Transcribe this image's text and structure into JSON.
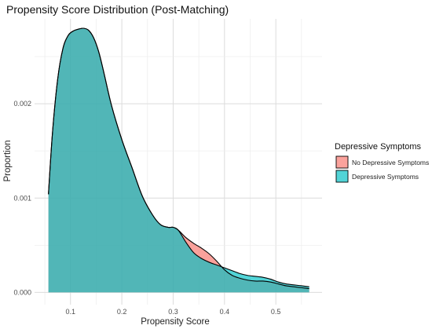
{
  "chart_data": {
    "type": "area",
    "title": "Propensity Score Distribution (Post-Matching)",
    "xlabel": "Propensity Score",
    "ylabel": "Proportion",
    "xlim": [
      0.03,
      0.59
    ],
    "ylim": [
      -0.00013,
      0.0029
    ],
    "x_ticks": [
      {
        "value": 0.1,
        "label": "0.1"
      },
      {
        "value": 0.2,
        "label": "0.2"
      },
      {
        "value": 0.3,
        "label": "0.3"
      },
      {
        "value": 0.4,
        "label": "0.4"
      },
      {
        "value": 0.5,
        "label": "0.5"
      }
    ],
    "y_ticks": [
      {
        "value": 0.0,
        "label": "0.000"
      },
      {
        "value": 0.001,
        "label": "0.001"
      },
      {
        "value": 0.002,
        "label": "0.002"
      }
    ],
    "grid": true,
    "legend": {
      "title": "Depressive Symptoms",
      "position": "right",
      "entries": [
        {
          "label": "No Depressive Symptoms",
          "color": "#F8766D"
        },
        {
          "label": "Depressive Symptoms",
          "color": "#00BFC4"
        }
      ]
    },
    "series": [
      {
        "name": "No Depressive Symptoms",
        "color": "#F8766D",
        "x": [
          0.057,
          0.065,
          0.075,
          0.085,
          0.095,
          0.105,
          0.115,
          0.125,
          0.135,
          0.145,
          0.155,
          0.165,
          0.18,
          0.2,
          0.22,
          0.24,
          0.26,
          0.275,
          0.29,
          0.3,
          0.31,
          0.325,
          0.34,
          0.355,
          0.37,
          0.385,
          0.4,
          0.415,
          0.43,
          0.445,
          0.46,
          0.475,
          0.49,
          0.505,
          0.52,
          0.535,
          0.55,
          0.565
        ],
        "y": [
          0.00104,
          0.0017,
          0.00226,
          0.00258,
          0.00272,
          0.00277,
          0.00279,
          0.0028,
          0.00278,
          0.0027,
          0.00255,
          0.00233,
          0.00198,
          0.00162,
          0.00132,
          0.00102,
          0.00082,
          0.00072,
          0.00069,
          0.00069,
          0.00066,
          0.00058,
          0.00052,
          0.00047,
          0.00041,
          0.00033,
          0.00024,
          0.00018,
          0.00015,
          0.00013,
          0.00012,
          0.00012,
          0.00011,
          9e-05,
          7e-05,
          6e-05,
          5e-05,
          4e-05
        ]
      },
      {
        "name": "Depressive Symptoms",
        "color": "#00BFC4",
        "x": [
          0.057,
          0.065,
          0.075,
          0.085,
          0.095,
          0.105,
          0.115,
          0.125,
          0.135,
          0.145,
          0.155,
          0.165,
          0.18,
          0.2,
          0.22,
          0.24,
          0.26,
          0.275,
          0.29,
          0.3,
          0.31,
          0.325,
          0.34,
          0.355,
          0.37,
          0.385,
          0.4,
          0.415,
          0.43,
          0.445,
          0.46,
          0.475,
          0.49,
          0.505,
          0.52,
          0.535,
          0.55,
          0.565
        ],
        "y": [
          0.00104,
          0.0017,
          0.00226,
          0.00258,
          0.00272,
          0.00277,
          0.00279,
          0.0028,
          0.00278,
          0.0027,
          0.00255,
          0.00233,
          0.00198,
          0.00162,
          0.00132,
          0.00102,
          0.00082,
          0.00072,
          0.00069,
          0.00069,
          0.00066,
          0.00053,
          0.00042,
          0.00036,
          0.00032,
          0.00029,
          0.00026,
          0.00023,
          0.0002,
          0.00018,
          0.00017,
          0.00016,
          0.00014,
          0.00011,
          9e-05,
          8e-05,
          7e-05,
          6e-05
        ]
      }
    ]
  }
}
